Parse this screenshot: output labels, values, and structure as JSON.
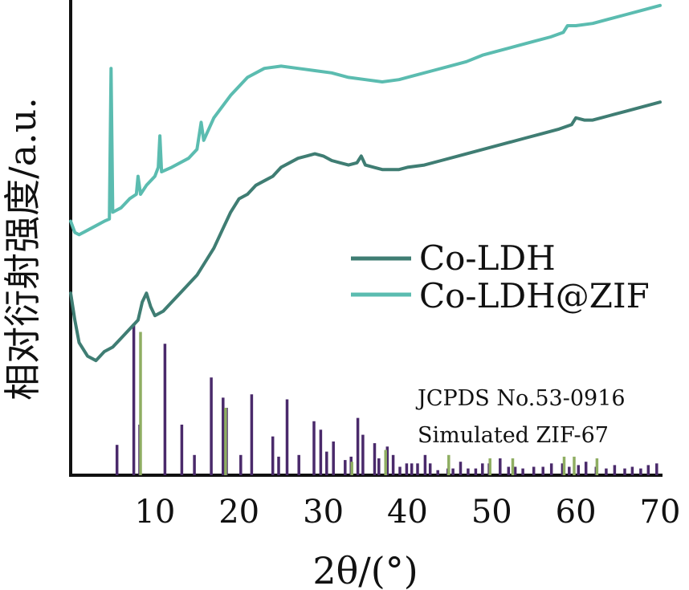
{
  "chart_data": {
    "type": "line",
    "xlabel": "2θ/(°)",
    "ylabel": "相对衍射强度/a.u.",
    "xlim": [
      0,
      70
    ],
    "xticks": [
      10,
      20,
      30,
      40,
      50,
      60,
      70
    ],
    "series": [
      {
        "name": "Co-LDH",
        "color": "#3f7d73",
        "points": [
          [
            0,
            0.58
          ],
          [
            0.5,
            0.52
          ],
          [
            1,
            0.47
          ],
          [
            2,
            0.44
          ],
          [
            3,
            0.43
          ],
          [
            4,
            0.45
          ],
          [
            5,
            0.46
          ],
          [
            6,
            0.48
          ],
          [
            7,
            0.5
          ],
          [
            8,
            0.52
          ],
          [
            8.5,
            0.56
          ],
          [
            9,
            0.58
          ],
          [
            9.5,
            0.55
          ],
          [
            10,
            0.53
          ],
          [
            11,
            0.54
          ],
          [
            12,
            0.56
          ],
          [
            13,
            0.58
          ],
          [
            14,
            0.6
          ],
          [
            15,
            0.62
          ],
          [
            16,
            0.65
          ],
          [
            17,
            0.68
          ],
          [
            18,
            0.72
          ],
          [
            19,
            0.76
          ],
          [
            20,
            0.79
          ],
          [
            21,
            0.8
          ],
          [
            22,
            0.82
          ],
          [
            23,
            0.83
          ],
          [
            24,
            0.84
          ],
          [
            25,
            0.86
          ],
          [
            26,
            0.87
          ],
          [
            27,
            0.88
          ],
          [
            28,
            0.885
          ],
          [
            29,
            0.89
          ],
          [
            30,
            0.885
          ],
          [
            31,
            0.875
          ],
          [
            32,
            0.87
          ],
          [
            33,
            0.865
          ],
          [
            34,
            0.87
          ],
          [
            34.5,
            0.885
          ],
          [
            35,
            0.865
          ],
          [
            36,
            0.86
          ],
          [
            37,
            0.855
          ],
          [
            38,
            0.855
          ],
          [
            39,
            0.855
          ],
          [
            40,
            0.86
          ],
          [
            42,
            0.865
          ],
          [
            44,
            0.875
          ],
          [
            46,
            0.885
          ],
          [
            48,
            0.895
          ],
          [
            50,
            0.905
          ],
          [
            52,
            0.915
          ],
          [
            54,
            0.925
          ],
          [
            56,
            0.935
          ],
          [
            58,
            0.945
          ],
          [
            59.5,
            0.955
          ],
          [
            60,
            0.97
          ],
          [
            61,
            0.965
          ],
          [
            62,
            0.965
          ],
          [
            63,
            0.97
          ],
          [
            64,
            0.975
          ],
          [
            66,
            0.985
          ],
          [
            68,
            0.995
          ],
          [
            70,
            1.005
          ]
        ]
      },
      {
        "name": "Co-LDH@ZIF",
        "color": "#5bbcb0",
        "points": [
          [
            0,
            0.74
          ],
          [
            0.5,
            0.715
          ],
          [
            1,
            0.71
          ],
          [
            2,
            0.72
          ],
          [
            3,
            0.73
          ],
          [
            4,
            0.74
          ],
          [
            4.6,
            0.745
          ],
          [
            4.8,
            1.08
          ],
          [
            5,
            0.76
          ],
          [
            6,
            0.77
          ],
          [
            7,
            0.79
          ],
          [
            7.8,
            0.8
          ],
          [
            8,
            0.84
          ],
          [
            8.3,
            0.8
          ],
          [
            9,
            0.82
          ],
          [
            10,
            0.84
          ],
          [
            10.4,
            0.86
          ],
          [
            10.6,
            0.93
          ],
          [
            10.8,
            0.85
          ],
          [
            12,
            0.86
          ],
          [
            14,
            0.88
          ],
          [
            15,
            0.9
          ],
          [
            15.5,
            0.96
          ],
          [
            15.8,
            0.92
          ],
          [
            17,
            0.97
          ],
          [
            19,
            1.02
          ],
          [
            21,
            1.06
          ],
          [
            23,
            1.08
          ],
          [
            25,
            1.085
          ],
          [
            27,
            1.08
          ],
          [
            29,
            1.075
          ],
          [
            31,
            1.07
          ],
          [
            33,
            1.06
          ],
          [
            35,
            1.055
          ],
          [
            37,
            1.05
          ],
          [
            39,
            1.055
          ],
          [
            41,
            1.065
          ],
          [
            43,
            1.075
          ],
          [
            45,
            1.085
          ],
          [
            47,
            1.095
          ],
          [
            49,
            1.11
          ],
          [
            51,
            1.12
          ],
          [
            53,
            1.13
          ],
          [
            55,
            1.14
          ],
          [
            57,
            1.15
          ],
          [
            58.5,
            1.16
          ],
          [
            59,
            1.175
          ],
          [
            60,
            1.175
          ],
          [
            62,
            1.18
          ],
          [
            64,
            1.19
          ],
          [
            66,
            1.2
          ],
          [
            68,
            1.21
          ],
          [
            70,
            1.22
          ]
        ]
      },
      {
        "name": "",
        "type": "stick",
        "color": "#4a2a6b",
        "x": [
          5.5,
          7.5,
          8.2,
          11.2,
          13.2,
          14.7,
          16.7,
          18.1,
          18.5,
          20.2,
          21.5,
          24,
          24.7,
          25.7,
          27.1,
          28.9,
          29.7,
          30.4,
          31.2,
          32.6,
          33.3,
          34.1,
          34.7,
          36.1,
          36.6,
          37.6,
          38.3,
          39.1,
          39.9,
          40.5,
          41.2,
          42.1,
          42.7,
          43.6,
          44.8,
          45.4,
          46.3,
          47.2,
          48.1,
          48.9,
          49.7,
          51,
          52,
          52.8,
          53.7,
          55,
          56.1,
          57.1,
          58.4,
          59.2,
          60.3,
          61.2,
          62.4,
          63.6,
          64.6,
          65.8,
          66.7,
          67.7,
          68.6,
          69.6
        ],
        "values": [
          0.18,
          0.9,
          0.3,
          0.78,
          0.3,
          0.12,
          0.58,
          0.46,
          0.4,
          0.12,
          0.48,
          0.23,
          0.11,
          0.45,
          0.12,
          0.32,
          0.27,
          0.14,
          0.2,
          0.09,
          0.11,
          0.34,
          0.24,
          0.19,
          0.1,
          0.17,
          0.12,
          0.05,
          0.07,
          0.07,
          0.07,
          0.12,
          0.07,
          0.03,
          0.04,
          0.04,
          0.08,
          0.04,
          0.04,
          0.07,
          0.07,
          0.1,
          0.05,
          0.05,
          0.04,
          0.05,
          0.05,
          0.07,
          0.07,
          0.05,
          0.06,
          0.08,
          0.05,
          0.04,
          0.06,
          0.04,
          0.05,
          0.04,
          0.06,
          0.07
        ]
      },
      {
        "name": "",
        "type": "stick",
        "color": "#8fae62",
        "x": [
          8.3,
          18.4,
          33.4,
          37.4,
          44.9,
          49.8,
          52.5,
          58.6,
          59.8,
          62.5
        ],
        "values": [
          0.85,
          0.4,
          0.08,
          0.15,
          0.12,
          0.1,
          0.1,
          0.11,
          0.11,
          0.1
        ]
      }
    ],
    "legend_position": "right-middle",
    "legend": [
      {
        "label": "Co-LDH",
        "color": "#3f7d73"
      },
      {
        "label": "Co-LDH@ZIF",
        "color": "#5bbcb0"
      }
    ],
    "annotations": [
      "JCPDS No.53-0916",
      "Simulated ZIF-67"
    ],
    "grid": false
  }
}
